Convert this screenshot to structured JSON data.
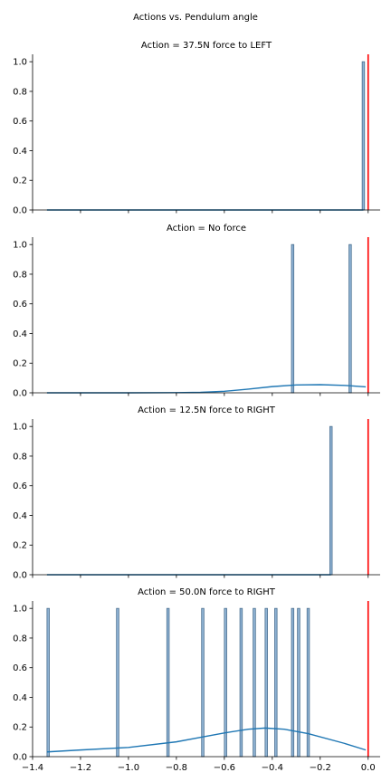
{
  "suptitle": "Actions vs. Pendulum angle",
  "colors": {
    "bar_fill": "#8fb3d4",
    "bar_edge": "#4a6f8f",
    "kde": "#1f77b4",
    "ref_line": "#ff0000",
    "axis": "#000000"
  },
  "chart_data": [
    {
      "type": "bar",
      "title": "Action = 37.5N force to LEFT",
      "xlim": [
        -1.4,
        0.05
      ],
      "ylim": [
        0,
        1.05
      ],
      "yticks": [
        "0.0",
        "0.2",
        "0.4",
        "0.6",
        "0.8",
        "1.0"
      ],
      "xticks": [],
      "bars": [
        {
          "x": -0.02,
          "height": 1.0
        }
      ],
      "kde": [
        {
          "x": -1.34,
          "y": 0.0
        },
        {
          "x": -0.02,
          "y": 0.0
        }
      ],
      "ref_line_x": 0.0
    },
    {
      "type": "bar",
      "title": "Action = No force",
      "xlim": [
        -1.4,
        0.05
      ],
      "ylim": [
        0,
        1.05
      ],
      "yticks": [
        "0.0",
        "0.2",
        "0.4",
        "0.6",
        "0.8",
        "1.0"
      ],
      "xticks": [],
      "bars": [
        {
          "x": -0.315,
          "height": 1.0
        },
        {
          "x": -0.075,
          "height": 1.0
        }
      ],
      "kde": [
        {
          "x": -1.34,
          "y": 0.0
        },
        {
          "x": -1.0,
          "y": 0.0
        },
        {
          "x": -0.8,
          "y": 0.001
        },
        {
          "x": -0.7,
          "y": 0.003
        },
        {
          "x": -0.6,
          "y": 0.01
        },
        {
          "x": -0.5,
          "y": 0.025
        },
        {
          "x": -0.4,
          "y": 0.042
        },
        {
          "x": -0.3,
          "y": 0.053
        },
        {
          "x": -0.2,
          "y": 0.055
        },
        {
          "x": -0.1,
          "y": 0.05
        },
        {
          "x": -0.01,
          "y": 0.04
        }
      ],
      "ref_line_x": 0.0
    },
    {
      "type": "bar",
      "title": "Action = 12.5N force to RIGHT",
      "xlim": [
        -1.4,
        0.05
      ],
      "ylim": [
        0,
        1.05
      ],
      "yticks": [
        "0.0",
        "0.2",
        "0.4",
        "0.6",
        "0.8",
        "1.0"
      ],
      "xticks": [],
      "bars": [
        {
          "x": -0.155,
          "height": 1.0
        }
      ],
      "kde": [
        {
          "x": -1.34,
          "y": 0.0
        },
        {
          "x": -0.155,
          "y": 0.0
        }
      ],
      "ref_line_x": 0.0
    },
    {
      "type": "bar",
      "title": "Action = 50.0N force to RIGHT",
      "xlim": [
        -1.4,
        0.05
      ],
      "ylim": [
        0,
        1.05
      ],
      "yticks": [
        "0.0",
        "0.2",
        "0.4",
        "0.6",
        "0.8",
        "1.0"
      ],
      "xticks": [
        "−1.4",
        "−1.2",
        "−1.0",
        "−0.8",
        "−0.6",
        "−0.4",
        "−0.2",
        "0.0"
      ],
      "bars": [
        {
          "x": -1.335,
          "height": 1.0
        },
        {
          "x": -1.045,
          "height": 1.0
        },
        {
          "x": -0.835,
          "height": 1.0
        },
        {
          "x": -0.69,
          "height": 1.0
        },
        {
          "x": -0.595,
          "height": 1.0
        },
        {
          "x": -0.53,
          "height": 1.0
        },
        {
          "x": -0.475,
          "height": 1.0
        },
        {
          "x": -0.425,
          "height": 1.0
        },
        {
          "x": -0.385,
          "height": 1.0
        },
        {
          "x": -0.315,
          "height": 1.0
        },
        {
          "x": -0.29,
          "height": 1.0
        },
        {
          "x": -0.25,
          "height": 1.0
        }
      ],
      "kde": [
        {
          "x": -1.34,
          "y": 0.032
        },
        {
          "x": -1.2,
          "y": 0.045
        },
        {
          "x": -1.0,
          "y": 0.062
        },
        {
          "x": -0.8,
          "y": 0.1
        },
        {
          "x": -0.7,
          "y": 0.13
        },
        {
          "x": -0.6,
          "y": 0.16
        },
        {
          "x": -0.5,
          "y": 0.185
        },
        {
          "x": -0.43,
          "y": 0.193
        },
        {
          "x": -0.35,
          "y": 0.185
        },
        {
          "x": -0.25,
          "y": 0.155
        },
        {
          "x": -0.1,
          "y": 0.09
        },
        {
          "x": -0.01,
          "y": 0.045
        }
      ],
      "ref_line_x": 0.0
    }
  ]
}
